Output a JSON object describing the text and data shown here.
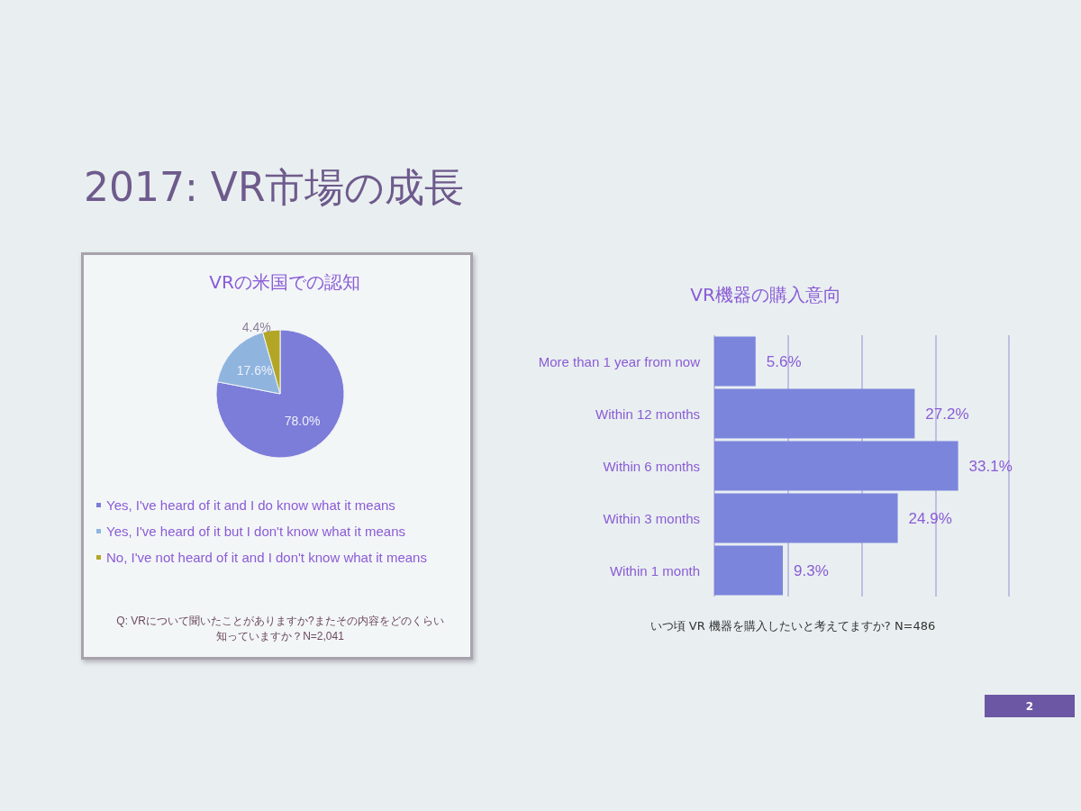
{
  "chart_data": [
    {
      "type": "pie",
      "title": "2017: VR市場の成長",
      "subtitle": "VRの米国での認知",
      "categories": [
        "Yes, I've heard of it and I do know what it means",
        "Yes, I've heard of it but I don't know what it means",
        "No, I've not heard of it and I don't know what it means"
      ],
      "values": [
        78.0,
        17.6,
        4.4
      ],
      "colors": [
        "#7c7cd9",
        "#8fb5df",
        "#b3a626"
      ],
      "value_labels": [
        "78.0%",
        "17.6%",
        "4.4%"
      ],
      "legend": "bottom",
      "annotations": [
        "Q: VRについて聞いたことがありますか?またその内容をどのくらい知っていますか？N=2,041"
      ]
    },
    {
      "type": "bar",
      "orientation": "horizontal",
      "title": "VR機器の購入意向",
      "categories": [
        "More than 1 year from now",
        "Within 12 months",
        "Within 6 months",
        "Within 3 months",
        "Within 1 month"
      ],
      "values": [
        5.6,
        27.2,
        33.1,
        24.9,
        9.3
      ],
      "color": "#7b85dc",
      "value_labels": [
        "5.6%",
        "27.2%",
        "33.1%",
        "24.9%",
        "9.3%"
      ],
      "xlim": [
        0,
        40
      ],
      "xticks": [
        {
          "value": 0,
          "label": null
        },
        {
          "value": 10,
          "label": null
        },
        {
          "value": 20,
          "label": null
        },
        {
          "value": 30,
          "label": null
        },
        {
          "value": 40,
          "label": null
        }
      ],
      "grid": "x",
      "tick_labels": "y",
      "annotations": [
        "いつ頃 VR 機器を購入したいと考えてますか? N=486",
        "2"
      ]
    }
  ]
}
